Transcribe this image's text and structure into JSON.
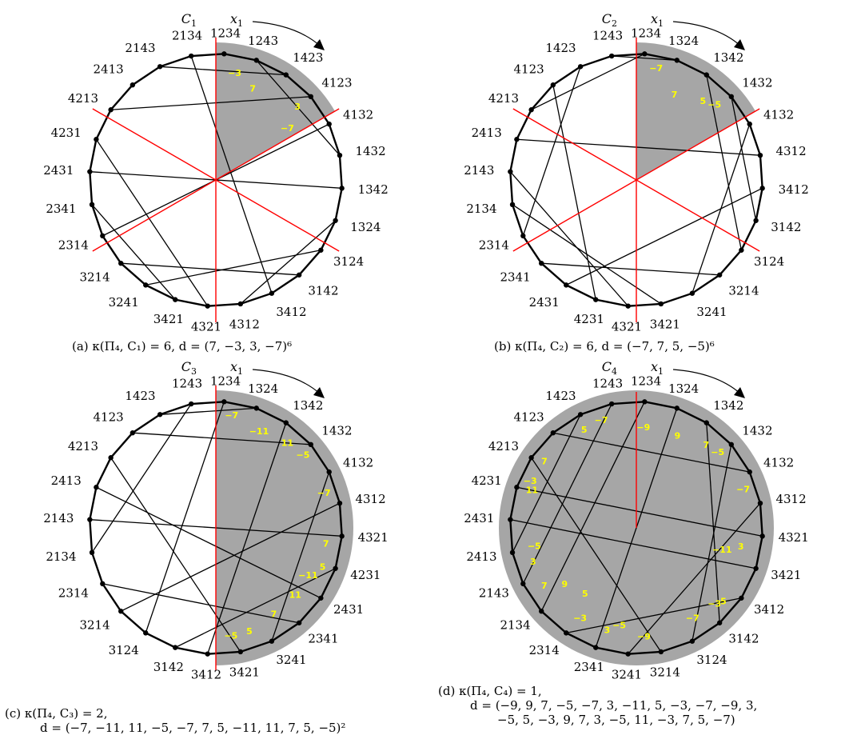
{
  "panels": [
    {
      "cx": 270,
      "label": "C1",
      "caption_lines": [
        "(a) κ(Π₄, C₁) = 6, d = (7, −3, 3, −7)⁶"
      ],
      "perms": [
        "1234",
        "1243",
        "1423",
        "4123",
        "4132",
        "1432",
        "1342",
        "1324",
        "3124",
        "3142",
        "3412",
        "4312",
        "4321",
        "3421",
        "3241",
        "3214",
        "2314",
        "2341",
        "2431",
        "4231",
        "4213",
        "2413",
        "2143",
        "2134"
      ],
      "shade": {
        "type": "sector",
        "start": 0,
        "end": 60
      },
      "red": {
        "type": "diameters",
        "angles": [
          0,
          60,
          120
        ]
      },
      "chords": [
        [
          1,
          5
        ],
        [
          2,
          22
        ],
        [
          3,
          20
        ],
        [
          4,
          16
        ],
        [
          6,
          18
        ],
        [
          7,
          11
        ],
        [
          8,
          14
        ],
        [
          9,
          15
        ],
        [
          10,
          23
        ],
        [
          12,
          19
        ],
        [
          13,
          17
        ]
      ],
      "dlabels": [
        {
          "t": "−3",
          "a": 10,
          "r": 0.86
        },
        {
          "t": "7",
          "a": 22,
          "r": 0.78
        },
        {
          "t": "3",
          "a": 48,
          "r": 0.87
        },
        {
          "t": "−7",
          "a": 54,
          "r": 0.7
        }
      ]
    },
    {
      "cx": 796,
      "label": "C2",
      "caption_lines": [
        "(b) κ(Π₄, C₂) = 6, d = (−7, 7, 5, −5)⁶"
      ],
      "perms": [
        "1234",
        "1324",
        "1342",
        "1432",
        "4132",
        "4312",
        "3412",
        "3142",
        "3124",
        "3214",
        "3241",
        "3421",
        "4321",
        "4231",
        "2431",
        "2341",
        "2314",
        "2134",
        "2143",
        "2413",
        "4213",
        "4123",
        "1423",
        "1243"
      ],
      "shade": {
        "type": "sector",
        "start": 0,
        "end": 60
      },
      "red": {
        "type": "diameters",
        "angles": [
          0,
          60,
          120
        ]
      },
      "chords": [
        [
          1,
          23
        ],
        [
          2,
          8
        ],
        [
          3,
          7
        ],
        [
          4,
          10
        ],
        [
          5,
          19
        ],
        [
          6,
          14
        ],
        [
          9,
          15
        ],
        [
          11,
          17
        ],
        [
          12,
          18
        ],
        [
          13,
          21
        ],
        [
          16,
          22
        ],
        [
          20,
          0
        ]
      ],
      "dlabels": [
        {
          "t": "−7",
          "a": 10,
          "r": 0.9
        },
        {
          "t": "7",
          "a": 24,
          "r": 0.74
        },
        {
          "t": "5",
          "a": 40,
          "r": 0.82
        },
        {
          "t": "−5",
          "a": 46,
          "r": 0.86
        }
      ]
    },
    {
      "cx": 270,
      "label": "C3",
      "caption_lines": [
        "(c) κ(Π₄, C₃) = 2,",
        "d = (−7, −11, 11, −5, −7, 7, 5, −11, 11, 7, 5, −5)²"
      ],
      "perms": [
        "1234",
        "1324",
        "1342",
        "1432",
        "4132",
        "4312",
        "4321",
        "4231",
        "2431",
        "2341",
        "3241",
        "3421",
        "3412",
        "3142",
        "3124",
        "3214",
        "2314",
        "2134",
        "2143",
        "2413",
        "4213",
        "4123",
        "1423",
        "1243"
      ],
      "shade": {
        "type": "half",
        "start": 0,
        "end": 180
      },
      "red": {
        "type": "vertical",
        "angles": [
          0
        ]
      },
      "chords": [
        [
          1,
          22
        ],
        [
          2,
          12
        ],
        [
          3,
          21
        ],
        [
          4,
          10
        ],
        [
          5,
          15
        ],
        [
          6,
          18
        ],
        [
          7,
          13
        ],
        [
          8,
          19
        ],
        [
          9,
          16
        ],
        [
          11,
          20
        ],
        [
          14,
          0
        ],
        [
          17,
          23
        ]
      ],
      "dlabels": [
        {
          "t": "−7",
          "a": 8,
          "r": 0.9
        },
        {
          "t": "−11",
          "a": 24,
          "r": 0.84
        },
        {
          "t": "11",
          "a": 40,
          "r": 0.88
        },
        {
          "t": "−5",
          "a": 50,
          "r": 0.9
        },
        {
          "t": "−7",
          "a": 72,
          "r": 0.9
        },
        {
          "t": "7",
          "a": 98,
          "r": 0.88
        },
        {
          "t": "5",
          "a": 110,
          "r": 0.9
        },
        {
          "t": "−11",
          "a": 117,
          "r": 0.82
        },
        {
          "t": "11",
          "a": 130,
          "r": 0.82
        },
        {
          "t": "7",
          "a": 146,
          "r": 0.82
        },
        {
          "t": "5",
          "a": 162,
          "r": 0.86
        },
        {
          "t": "−5",
          "a": 172,
          "r": 0.86
        }
      ]
    },
    {
      "cx": 796,
      "label": "C4",
      "caption_lines": [
        "(d) κ(Π₄, C₄) = 1,",
        "d = (−9, 9, 7, −5, −7, 3, −11, 5, −3, −7, −9, 3,",
        "−5, 5, −3, 9, 7, 3, −5, 11, −3, 7, 5, −7)"
      ],
      "perms": [
        "1234",
        "1324",
        "1342",
        "1432",
        "4132",
        "4312",
        "4321",
        "3421",
        "3412",
        "3142",
        "3124",
        "3214",
        "3241",
        "2341",
        "2314",
        "2134",
        "2143",
        "2413",
        "2431",
        "4231",
        "4213",
        "4123",
        "1423",
        "1243"
      ],
      "shade": {
        "type": "full",
        "start": 0,
        "end": 360
      },
      "red": {
        "type": "radius",
        "angles": [
          0
        ]
      },
      "chords": [
        [
          0,
          15
        ],
        [
          1,
          13
        ],
        [
          2,
          9
        ],
        [
          3,
          10
        ],
        [
          4,
          21
        ],
        [
          5,
          12
        ],
        [
          6,
          19
        ],
        [
          8,
          14
        ],
        [
          11,
          20
        ],
        [
          16,
          23
        ],
        [
          17,
          22
        ],
        [
          18,
          7
        ]
      ],
      "dlabels": [
        {
          "t": "−9",
          "a": 4,
          "r": 0.8
        },
        {
          "t": "9",
          "a": 24,
          "r": 0.8
        },
        {
          "t": "7",
          "a": 40,
          "r": 0.86
        },
        {
          "t": "−5",
          "a": 47,
          "r": 0.88
        },
        {
          "t": "−7",
          "a": 70,
          "r": 0.9
        },
        {
          "t": "3",
          "a": 100,
          "r": 0.84
        },
        {
          "t": "−11",
          "a": 104,
          "r": 0.7
        },
        {
          "t": "5",
          "a": 130,
          "r": 0.9
        },
        {
          "t": "−3",
          "a": 134,
          "r": 0.86
        },
        {
          "t": "−7",
          "a": 148,
          "r": 0.84
        },
        {
          "t": "−9",
          "a": 176,
          "r": 0.86
        },
        {
          "t": "3",
          "a": 196,
          "r": 0.84
        },
        {
          "t": "−5",
          "a": 190,
          "r": 0.78
        },
        {
          "t": "5",
          "a": 218,
          "r": 0.66
        },
        {
          "t": "−3",
          "a": 212,
          "r": 0.84
        },
        {
          "t": "9",
          "a": 232,
          "r": 0.72
        },
        {
          "t": "7",
          "a": 238,
          "r": 0.86
        },
        {
          "t": "3",
          "a": 252,
          "r": 0.86
        },
        {
          "t": "−5",
          "a": 260,
          "r": 0.82
        },
        {
          "t": "11",
          "a": 290,
          "r": 0.88
        },
        {
          "t": "−3",
          "a": 294,
          "r": 0.92
        },
        {
          "t": "7",
          "a": 306,
          "r": 0.9
        },
        {
          "t": "5",
          "a": 332,
          "r": 0.88
        },
        {
          "t": "−7",
          "a": 342,
          "r": 0.9
        }
      ]
    }
  ],
  "arrow_label": "x1",
  "colors": {
    "shade": "#a6a6a6",
    "red": "#ff0000",
    "dlabel": "#ffff00",
    "line": "#000000"
  }
}
